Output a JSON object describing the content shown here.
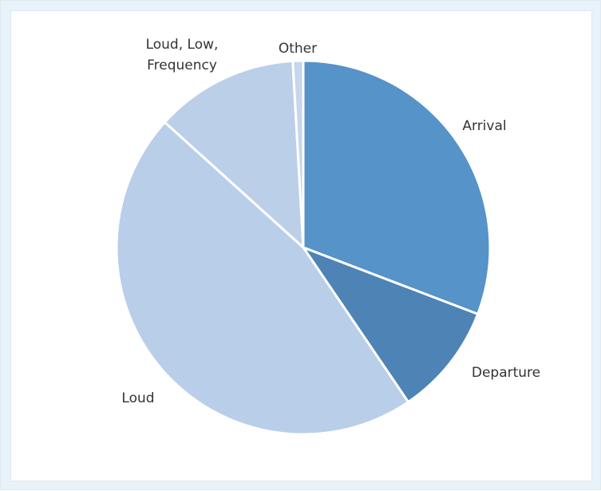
{
  "chart_data": {
    "type": "pie",
    "title": "",
    "categories": [
      "Arrival",
      "Departure",
      "Loud",
      "Loud, Low, Frequency",
      "Other"
    ],
    "values": [
      30.8,
      9.7,
      46.2,
      12.4,
      0.9
    ],
    "unit": "percent (estimated)",
    "start_angle_deg": 0,
    "direction": "clockwise",
    "legend": "none",
    "label_position": "outside",
    "colors": [
      "#5593c9",
      "#4d84b5",
      "#b9cee8",
      "#bccfe9",
      "#c6d6ec"
    ],
    "labels": [
      [
        "Arrival"
      ],
      [
        "Departure"
      ],
      [
        "Loud"
      ],
      [
        "Loud, Low,",
        "Frequency"
      ],
      [
        "Other"
      ]
    ]
  }
}
